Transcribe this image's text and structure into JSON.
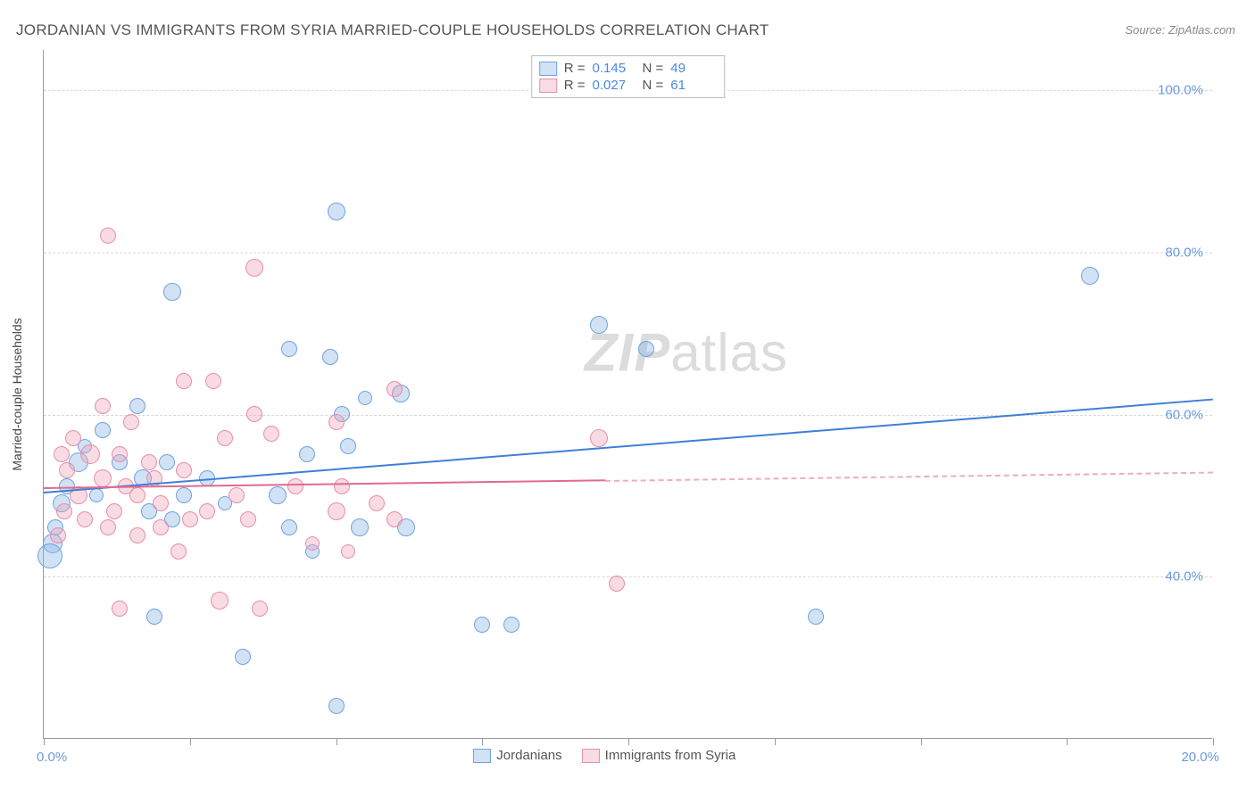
{
  "title": "JORDANIAN VS IMMIGRANTS FROM SYRIA MARRIED-COUPLE HOUSEHOLDS CORRELATION CHART",
  "source": "Source: ZipAtlas.com",
  "watermark_bold": "ZIP",
  "watermark_rest": "atlas",
  "y_axis_title": "Married-couple Households",
  "chart": {
    "type": "scatter",
    "background_color": "#ffffff",
    "grid_color": "#d8d8d8",
    "xlim": [
      0,
      20
    ],
    "ylim": [
      20,
      105
    ],
    "x_ticks": [
      0,
      2.5,
      5,
      7.5,
      10,
      12.5,
      15,
      17.5,
      20
    ],
    "x_tick_labels": {
      "left": "0.0%",
      "right": "20.0%"
    },
    "y_ticks": [
      40,
      60,
      80,
      100
    ],
    "y_tick_labels": [
      "40.0%",
      "60.0%",
      "80.0%",
      "100.0%"
    ],
    "series": [
      {
        "name": "Jordanians",
        "fill": "rgba(135,178,230,0.38)",
        "stroke": "#6fa3dd",
        "line_color": "#3f7fd8",
        "r_value": "0.145",
        "n_value": "49",
        "trend": {
          "x1": 0,
          "y1": 50.5,
          "x2": 20,
          "y2": 62,
          "dash_from_x": null
        },
        "points": [
          {
            "x": 5.0,
            "y": 85,
            "r": 10
          },
          {
            "x": 17.9,
            "y": 77,
            "r": 10
          },
          {
            "x": 2.2,
            "y": 75,
            "r": 10
          },
          {
            "x": 4.2,
            "y": 68,
            "r": 9
          },
          {
            "x": 4.9,
            "y": 67,
            "r": 9
          },
          {
            "x": 9.5,
            "y": 71,
            "r": 10
          },
          {
            "x": 10.3,
            "y": 68,
            "r": 9
          },
          {
            "x": 5.1,
            "y": 60,
            "r": 9
          },
          {
            "x": 5.5,
            "y": 62,
            "r": 8
          },
          {
            "x": 6.1,
            "y": 62.5,
            "r": 10
          },
          {
            "x": 4.5,
            "y": 55,
            "r": 9
          },
          {
            "x": 5.2,
            "y": 56,
            "r": 9
          },
          {
            "x": 1.6,
            "y": 61,
            "r": 9
          },
          {
            "x": 1.0,
            "y": 58,
            "r": 9
          },
          {
            "x": 0.6,
            "y": 54,
            "r": 11
          },
          {
            "x": 0.4,
            "y": 51,
            "r": 9
          },
          {
            "x": 0.3,
            "y": 49,
            "r": 10
          },
          {
            "x": 0.2,
            "y": 46,
            "r": 9
          },
          {
            "x": 0.15,
            "y": 44,
            "r": 11
          },
          {
            "x": 0.1,
            "y": 42.5,
            "r": 14
          },
          {
            "x": 1.3,
            "y": 54,
            "r": 9
          },
          {
            "x": 1.7,
            "y": 52,
            "r": 10
          },
          {
            "x": 2.1,
            "y": 54,
            "r": 9
          },
          {
            "x": 2.4,
            "y": 50,
            "r": 9
          },
          {
            "x": 1.8,
            "y": 48,
            "r": 9
          },
          {
            "x": 2.2,
            "y": 47,
            "r": 9
          },
          {
            "x": 2.8,
            "y": 52,
            "r": 9
          },
          {
            "x": 3.1,
            "y": 49,
            "r": 8
          },
          {
            "x": 4.0,
            "y": 50,
            "r": 10
          },
          {
            "x": 4.2,
            "y": 46,
            "r": 9
          },
          {
            "x": 5.4,
            "y": 46,
            "r": 10
          },
          {
            "x": 6.2,
            "y": 46,
            "r": 10
          },
          {
            "x": 4.6,
            "y": 43,
            "r": 8
          },
          {
            "x": 1.9,
            "y": 35,
            "r": 9
          },
          {
            "x": 3.4,
            "y": 30,
            "r": 9
          },
          {
            "x": 7.5,
            "y": 34,
            "r": 9
          },
          {
            "x": 8.0,
            "y": 34,
            "r": 9
          },
          {
            "x": 5.0,
            "y": 24,
            "r": 9
          },
          {
            "x": 13.2,
            "y": 35,
            "r": 9
          },
          {
            "x": 0.7,
            "y": 56,
            "r": 8
          },
          {
            "x": 0.9,
            "y": 50,
            "r": 8
          }
        ]
      },
      {
        "name": "Immigants from Syria",
        "display_name": "Immigrants from Syria",
        "fill": "rgba(236,160,182,0.38)",
        "stroke": "#e68fab",
        "line_color": "#e06a8f",
        "r_value": "0.027",
        "n_value": "61",
        "trend": {
          "x1": 0,
          "y1": 51,
          "x2": 20,
          "y2": 53,
          "dash_from_x": 9.6
        },
        "points": [
          {
            "x": 1.1,
            "y": 82,
            "r": 9
          },
          {
            "x": 3.6,
            "y": 78,
            "r": 10
          },
          {
            "x": 2.4,
            "y": 64,
            "r": 9
          },
          {
            "x": 2.9,
            "y": 64,
            "r": 9
          },
          {
            "x": 3.6,
            "y": 60,
            "r": 9
          },
          {
            "x": 3.1,
            "y": 57,
            "r": 9
          },
          {
            "x": 3.9,
            "y": 57.5,
            "r": 9
          },
          {
            "x": 5.0,
            "y": 59,
            "r": 9
          },
          {
            "x": 6.0,
            "y": 63,
            "r": 9
          },
          {
            "x": 1.0,
            "y": 61,
            "r": 9
          },
          {
            "x": 1.5,
            "y": 59,
            "r": 9
          },
          {
            "x": 0.8,
            "y": 55,
            "r": 11
          },
          {
            "x": 0.5,
            "y": 57,
            "r": 9
          },
          {
            "x": 0.3,
            "y": 55,
            "r": 9
          },
          {
            "x": 0.4,
            "y": 53,
            "r": 9
          },
          {
            "x": 0.6,
            "y": 50,
            "r": 10
          },
          {
            "x": 0.35,
            "y": 48,
            "r": 9
          },
          {
            "x": 0.7,
            "y": 47,
            "r": 9
          },
          {
            "x": 0.25,
            "y": 45,
            "r": 9
          },
          {
            "x": 1.0,
            "y": 52,
            "r": 10
          },
          {
            "x": 1.4,
            "y": 51,
            "r": 9
          },
          {
            "x": 1.3,
            "y": 55,
            "r": 9
          },
          {
            "x": 1.8,
            "y": 54,
            "r": 9
          },
          {
            "x": 1.6,
            "y": 50,
            "r": 9
          },
          {
            "x": 1.9,
            "y": 52,
            "r": 9
          },
          {
            "x": 2.4,
            "y": 53,
            "r": 9
          },
          {
            "x": 2.0,
            "y": 49,
            "r": 9
          },
          {
            "x": 1.2,
            "y": 48,
            "r": 9
          },
          {
            "x": 1.1,
            "y": 46,
            "r": 9
          },
          {
            "x": 1.6,
            "y": 45,
            "r": 9
          },
          {
            "x": 2.0,
            "y": 46,
            "r": 9
          },
          {
            "x": 2.5,
            "y": 47,
            "r": 9
          },
          {
            "x": 2.3,
            "y": 43,
            "r": 9
          },
          {
            "x": 2.8,
            "y": 48,
            "r": 9
          },
          {
            "x": 3.3,
            "y": 50,
            "r": 9
          },
          {
            "x": 3.5,
            "y": 47,
            "r": 9
          },
          {
            "x": 4.3,
            "y": 51,
            "r": 9
          },
          {
            "x": 5.1,
            "y": 51,
            "r": 9
          },
          {
            "x": 5.0,
            "y": 48,
            "r": 10
          },
          {
            "x": 5.7,
            "y": 49,
            "r": 9
          },
          {
            "x": 6.0,
            "y": 47,
            "r": 9
          },
          {
            "x": 4.6,
            "y": 44,
            "r": 8
          },
          {
            "x": 5.2,
            "y": 43,
            "r": 8
          },
          {
            "x": 1.3,
            "y": 36,
            "r": 9
          },
          {
            "x": 3.0,
            "y": 37,
            "r": 10
          },
          {
            "x": 3.7,
            "y": 36,
            "r": 9
          },
          {
            "x": 9.5,
            "y": 57,
            "r": 10
          },
          {
            "x": 9.8,
            "y": 39,
            "r": 9
          }
        ]
      }
    ]
  }
}
